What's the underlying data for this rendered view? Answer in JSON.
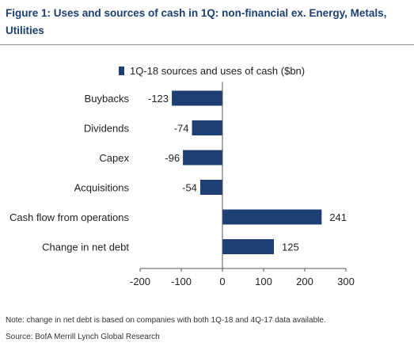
{
  "figure": {
    "title": "Figure 1: Uses and sources of cash in 1Q: non-financial ex. Energy, Metals, Utilities",
    "note": "Note: change in net debt is based on companies with both 1Q-18 and 4Q-17 data available.",
    "source": "Source: BofA Merrill Lynch Global Research"
  },
  "colors": {
    "bar": "#1d3f73",
    "title": "#1d3f73",
    "axis": "#555555"
  },
  "chart_data": {
    "type": "bar",
    "orientation": "horizontal",
    "categories": [
      "Buybacks",
      "Dividends",
      "Capex",
      "Acquisitions",
      "Cash flow from operations",
      "Change in net debt"
    ],
    "series": [
      {
        "name": "1Q-18 sources and uses of cash ($bn)",
        "values": [
          -123,
          -74,
          -96,
          -54,
          241,
          125
        ]
      }
    ],
    "value_labels": [
      "-123",
      "-74",
      "-96",
      "-54",
      "241",
      "125"
    ],
    "xlim": [
      -200,
      300
    ],
    "xticks": [
      -200,
      -100,
      0,
      100,
      200,
      300
    ],
    "xtick_labels": [
      "-200",
      "-100",
      "0",
      "100",
      "200",
      "300"
    ],
    "grid": false,
    "legend_position": "top"
  }
}
